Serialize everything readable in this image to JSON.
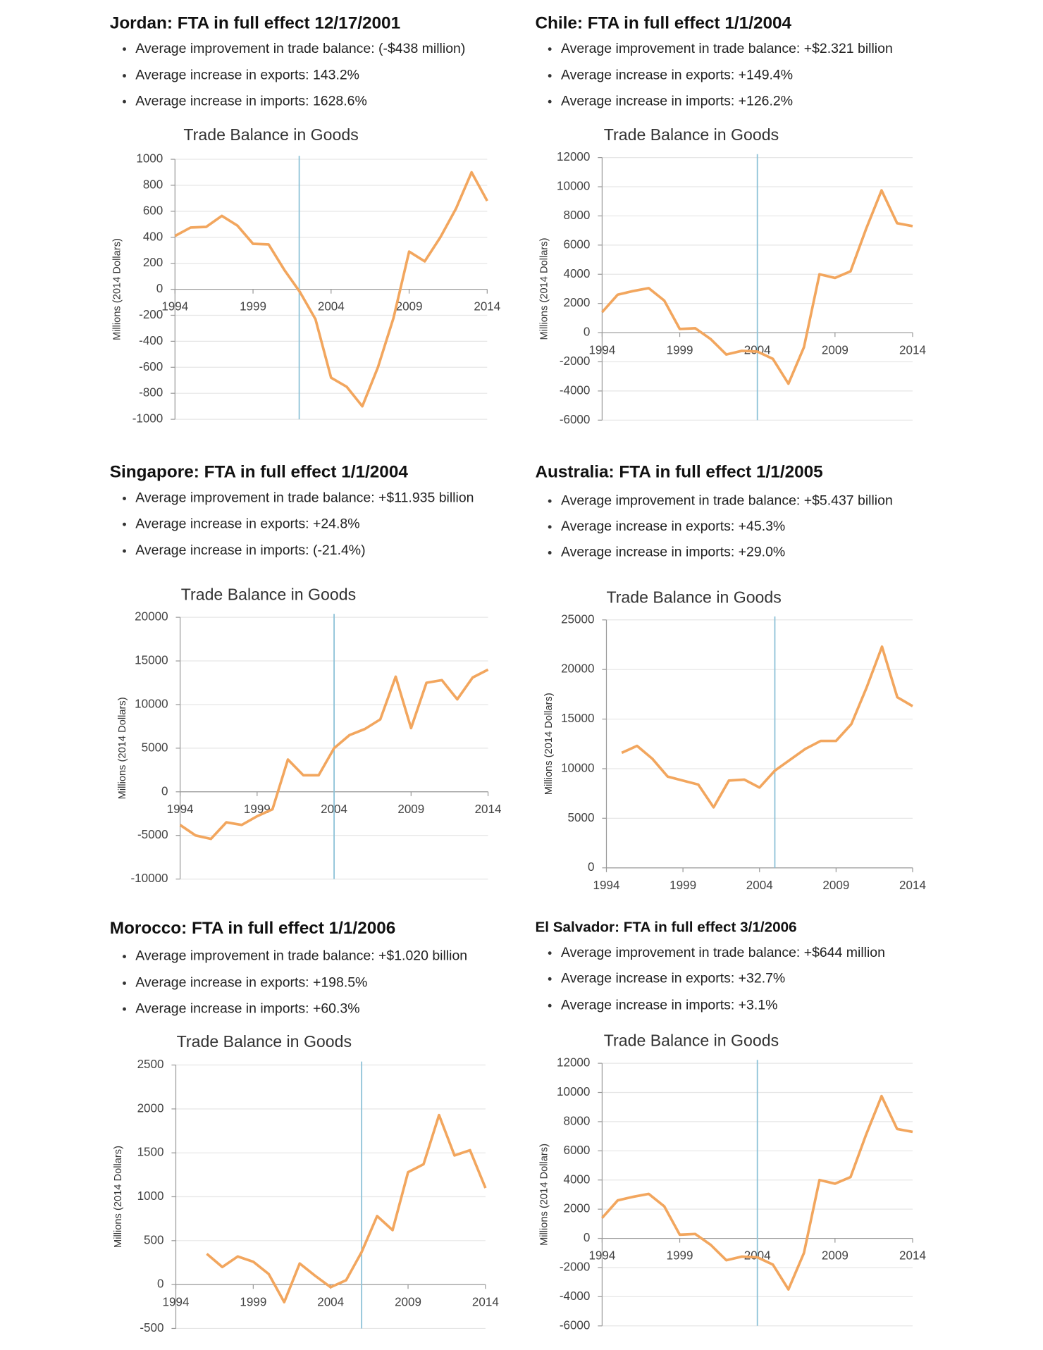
{
  "panels": [
    {
      "heading": "Jordan: FTA in full effect 12/17/2001",
      "bullets": [
        "Average improvement in trade balance: (-$438 million)",
        "Average increase in exports: 143.2%",
        "Average increase in imports: 1628.6%"
      ]
    },
    {
      "heading": "Chile: FTA in full effect 1/1/2004",
      "bullets": [
        "Average improvement in trade balance: +$2.321 billion",
        "Average increase in exports: +149.4%",
        "Average increase in imports: +126.2%"
      ]
    },
    {
      "heading": "Singapore: FTA in full effect 1/1/2004",
      "bullets": [
        "Average improvement in trade balance: +$11.935 billion",
        "Average increase in exports: +24.8%",
        "Average increase in imports: (-21.4%)"
      ]
    },
    {
      "heading": "Australia: FTA in full effect 1/1/2005",
      "bullets": [
        "Average improvement in trade balance: +$5.437 billion",
        "Average increase in exports: +45.3%",
        "Average increase in imports: +29.0%"
      ]
    },
    {
      "heading": "Morocco: FTA in full effect 1/1/2006",
      "bullets": [
        "Average improvement in trade balance: +$1.020 billion",
        "Average increase in exports: +198.5%",
        "Average increase in imports: +60.3%"
      ]
    },
    {
      "heading": "El Salvador: FTA in full effect 3/1/2006",
      "bullets": [
        "Average improvement in trade balance: +$644 million",
        "Average increase in exports: +32.7%",
        "Average increase in imports: +3.1%"
      ]
    }
  ],
  "chart_data": [
    {
      "type": "line",
      "title": "Trade Balance in Goods",
      "y_label": "Millions (2014 Dollars)",
      "x": [
        1994,
        1995,
        1996,
        1997,
        1998,
        1999,
        2000,
        2001,
        2002,
        2003,
        2004,
        2005,
        2006,
        2007,
        2008,
        2009,
        2010,
        2011,
        2012,
        2013,
        2014
      ],
      "series": [
        {
          "color": "#f2a65e",
          "values": [
            410,
            475,
            480,
            565,
            490,
            350,
            345,
            150,
            -20,
            -230,
            -680,
            -750,
            -900,
            -600,
            -220,
            290,
            215,
            400,
            620,
            900,
            680
          ]
        }
      ],
      "xlim": [
        1994,
        2014
      ],
      "xticks": [
        1994,
        1999,
        2004,
        2009,
        2014
      ],
      "ylim": [
        -1000,
        1000
      ],
      "yticks": [
        -1000,
        -800,
        -600,
        -400,
        -200,
        0,
        200,
        400,
        600,
        800,
        1000
      ],
      "event_x": 2001.96,
      "event_color": "#8fc3d8",
      "grid": true
    },
    {
      "type": "line",
      "title": "Trade Balance in Goods",
      "y_label": "Millions (2014 Dollars)",
      "x": [
        1994,
        1995,
        1996,
        1997,
        1998,
        1999,
        2000,
        2001,
        2002,
        2003,
        2004,
        2005,
        2006,
        2007,
        2008,
        2009,
        2010,
        2011,
        2012,
        2013,
        2014
      ],
      "series": [
        {
          "color": "#f2a65e",
          "values": [
            1400,
            2600,
            2850,
            3050,
            2200,
            250,
            300,
            -450,
            -1500,
            -1250,
            -1300,
            -1800,
            -3500,
            -1000,
            4000,
            3750,
            4200,
            7100,
            9750,
            7500,
            7300
          ]
        }
      ],
      "xlim": [
        1994,
        2014
      ],
      "xticks": [
        1994,
        1999,
        2004,
        2009,
        2014
      ],
      "ylim": [
        -6000,
        12000
      ],
      "yticks": [
        -6000,
        -4000,
        -2000,
        0,
        2000,
        4000,
        6000,
        8000,
        10000,
        12000
      ],
      "event_x": 2004,
      "event_color": "#8fc3d8",
      "grid": true
    },
    {
      "type": "line",
      "title": "Trade Balance in Goods",
      "y_label": "Millions (2014 Dollars)",
      "x": [
        1994,
        1995,
        1996,
        1997,
        1998,
        1999,
        2000,
        2001,
        2002,
        2003,
        2004,
        2005,
        2006,
        2007,
        2008,
        2009,
        2010,
        2011,
        2012,
        2013,
        2014
      ],
      "series": [
        {
          "color": "#f2a65e",
          "values": [
            -3800,
            -5000,
            -5400,
            -3500,
            -3800,
            -2800,
            -2000,
            3700,
            1900,
            1900,
            5000,
            6500,
            7200,
            8300,
            13200,
            7300,
            12500,
            12800,
            10600,
            13100,
            14000
          ]
        }
      ],
      "xlim": [
        1994,
        2014
      ],
      "xticks": [
        1994,
        1999,
        2004,
        2009,
        2014
      ],
      "ylim": [
        -10000,
        20000
      ],
      "yticks": [
        -10000,
        -5000,
        0,
        5000,
        10000,
        15000,
        20000
      ],
      "event_x": 2004,
      "event_color": "#8fc3d8",
      "grid": true
    },
    {
      "type": "line",
      "title": "Trade Balance in Goods",
      "y_label": "Millions (2014 Dollars)",
      "x": [
        1994,
        1995,
        1996,
        1997,
        1998,
        1999,
        2000,
        2001,
        2002,
        2003,
        2004,
        2005,
        2006,
        2007,
        2008,
        2009,
        2010,
        2011,
        2012,
        2013,
        2014
      ],
      "series": [
        {
          "color": "#f2a65e",
          "values": [
            null,
            11600,
            12300,
            11000,
            9200,
            8800,
            8400,
            6100,
            8800,
            8900,
            8100,
            9800,
            10900,
            12000,
            12800,
            12800,
            14500,
            18200,
            22300,
            17200,
            16300
          ]
        }
      ],
      "xlim": [
        1994,
        2014
      ],
      "xticks": [
        1994,
        1999,
        2004,
        2009,
        2014
      ],
      "ylim": [
        0,
        25000
      ],
      "yticks": [
        0,
        5000,
        10000,
        15000,
        20000,
        25000
      ],
      "event_x": 2005,
      "event_color": "#8fc3d8",
      "grid": true
    },
    {
      "type": "line",
      "title": "Trade Balance in Goods",
      "y_label": "Millions (2014 Dollars)",
      "x": [
        1994,
        1995,
        1996,
        1997,
        1998,
        1999,
        2000,
        2001,
        2002,
        2003,
        2004,
        2005,
        2006,
        2007,
        2008,
        2009,
        2010,
        2011,
        2012,
        2013,
        2014
      ],
      "series": [
        {
          "color": "#f2a65e",
          "values": [
            null,
            null,
            350,
            200,
            320,
            260,
            120,
            -200,
            240,
            100,
            -30,
            50,
            370,
            780,
            620,
            1280,
            1370,
            1930,
            1470,
            1530,
            1100
          ]
        }
      ],
      "xlim": [
        1994,
        2014
      ],
      "xticks": [
        1994,
        1999,
        2004,
        2009,
        2014
      ],
      "ylim": [
        -500,
        2500
      ],
      "yticks": [
        -500,
        0,
        500,
        1000,
        1500,
        2000,
        2500
      ],
      "event_x": 2006,
      "event_color": "#8fc3d8",
      "grid": true
    },
    {
      "type": "line",
      "title": "Trade Balance in Goods",
      "y_label": "Millions (2014 Dollars)",
      "x": [
        1994,
        1995,
        1996,
        1997,
        1998,
        1999,
        2000,
        2001,
        2002,
        2003,
        2004,
        2005,
        2006,
        2007,
        2008,
        2009,
        2010,
        2011,
        2012,
        2013,
        2014
      ],
      "series": [
        {
          "color": "#f2a65e",
          "values": [
            1400,
            2600,
            2850,
            3050,
            2200,
            250,
            300,
            -450,
            -1500,
            -1250,
            -1300,
            -1800,
            -3500,
            -1000,
            4000,
            3750,
            4200,
            7100,
            9750,
            7500,
            7300
          ]
        }
      ],
      "xlim": [
        1994,
        2014
      ],
      "xticks": [
        1994,
        1999,
        2004,
        2009,
        2014
      ],
      "ylim": [
        -6000,
        12000
      ],
      "yticks": [
        -6000,
        -4000,
        -2000,
        0,
        2000,
        4000,
        6000,
        8000,
        10000,
        12000
      ],
      "event_x": 2004,
      "event_color": "#8fc3d8",
      "grid": true
    }
  ]
}
